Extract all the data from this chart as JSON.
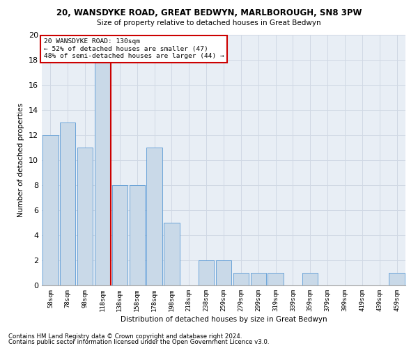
{
  "title1": "20, WANSDYKE ROAD, GREAT BEDWYN, MARLBOROUGH, SN8 3PW",
  "title2": "Size of property relative to detached houses in Great Bedwyn",
  "xlabel": "Distribution of detached houses by size in Great Bedwyn",
  "ylabel": "Number of detached properties",
  "categories": [
    "58sqm",
    "78sqm",
    "98sqm",
    "118sqm",
    "138sqm",
    "158sqm",
    "178sqm",
    "198sqm",
    "218sqm",
    "238sqm",
    "259sqm",
    "279sqm",
    "299sqm",
    "319sqm",
    "339sqm",
    "359sqm",
    "379sqm",
    "399sqm",
    "419sqm",
    "439sqm",
    "459sqm"
  ],
  "values": [
    12,
    13,
    11,
    18,
    8,
    8,
    11,
    5,
    0,
    2,
    2,
    1,
    1,
    1,
    0,
    1,
    0,
    0,
    0,
    0,
    1
  ],
  "bar_color": "#c9d9e8",
  "bar_edge_color": "#5b9bd5",
  "ref_line_x": 3.5,
  "ref_line_color": "#cc0000",
  "annotation_title": "20 WANSDYKE ROAD: 130sqm",
  "annotation_line1": "← 52% of detached houses are smaller (47)",
  "annotation_line2": "48% of semi-detached houses are larger (44) →",
  "annotation_box_color": "#cc0000",
  "ylim": [
    0,
    20
  ],
  "yticks": [
    0,
    2,
    4,
    6,
    8,
    10,
    12,
    14,
    16,
    18,
    20
  ],
  "footnote1": "Contains HM Land Registry data © Crown copyright and database right 2024.",
  "footnote2": "Contains public sector information licensed under the Open Government Licence v3.0.",
  "bg_color": "#ffffff",
  "grid_color": "#d0d8e4",
  "axes_bg_color": "#e8eef5"
}
